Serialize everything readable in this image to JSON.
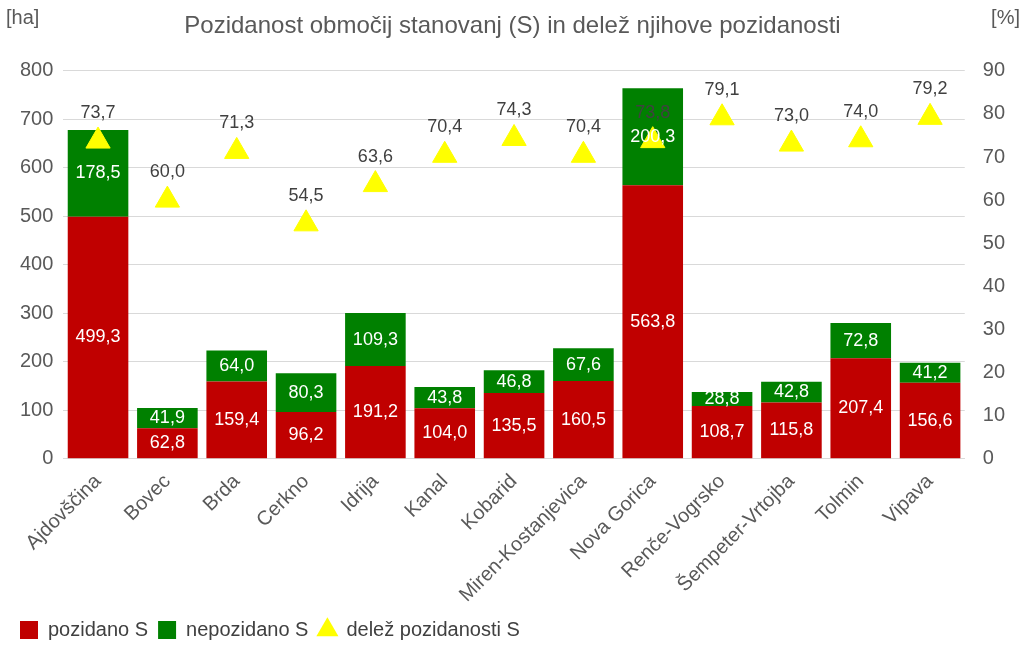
{
  "chart_data": {
    "type": "bar",
    "title": "Pozidanost območij stanovanj (S) in delež njihove pozidanosti",
    "ylabel": "[ha]",
    "y2label": "[%]",
    "categories": [
      "Ajdovščina",
      "Bovec",
      "Brda",
      "Cerkno",
      "Idrija",
      "Kanal",
      "Kobarid",
      "Miren-Kostanjevica",
      "Nova Gorica",
      "Renče-Vogrsko",
      "Šempeter-Vrtojba",
      "Tolmin",
      "Vipava"
    ],
    "stacked": true,
    "series": [
      {
        "name": "pozidano S",
        "color": "#c00000",
        "values": [
          499.3,
          62.8,
          159.4,
          96.2,
          191.2,
          104.0,
          135.5,
          160.5,
          563.8,
          108.7,
          115.8,
          207.4,
          156.6
        ],
        "value_labels": [
          "499,3",
          "62,8",
          "159,4",
          "96,2",
          "191,2",
          "104,0",
          "135,5",
          "160,5",
          "563,8",
          "108,7",
          "115,8",
          "207,4",
          "156,6"
        ]
      },
      {
        "name": "nepozidano S",
        "color": "#008000",
        "values": [
          178.5,
          41.9,
          64.0,
          80.3,
          109.3,
          43.8,
          46.8,
          67.6,
          200.3,
          28.8,
          42.8,
          72.8,
          41.2
        ],
        "value_labels": [
          "178,5",
          "41,9",
          "64,0",
          "80,3",
          "109,3",
          "43,8",
          "46,8",
          "67,6",
          "200,3",
          "28,8",
          "42,8",
          "72,8",
          "41,2"
        ]
      },
      {
        "name": "delež pozidanosti S",
        "type": "scatter",
        "axis": "y2",
        "marker": "triangle",
        "color": "#ffff00",
        "x": [
          "Ajdovščina",
          "Bovec",
          "Brda",
          "Cerkno",
          "Idrija",
          "Kanal",
          "Kobarid",
          "Miren-Kostanjevica",
          "Nova Gorica",
          "Renče-Vogrsko",
          "Šempeter-Vrtojba",
          "Tolmin",
          "Vipava"
        ],
        "values": [
          73.7,
          60.0,
          71.3,
          54.5,
          63.6,
          70.4,
          74.3,
          70.4,
          73.8,
          79.1,
          73.0,
          74.0,
          79.2
        ],
        "value_labels": [
          "73,7",
          "60,0",
          "71,3",
          "54,5",
          "63,6",
          "70,4",
          "74,3",
          "70,4",
          "73,8",
          "79,1",
          "73,0",
          "74,0",
          "79,2"
        ]
      }
    ],
    "ylim": [
      0,
      800
    ],
    "yticks": [
      0,
      100,
      200,
      300,
      400,
      500,
      600,
      700,
      800
    ],
    "y2lim": [
      0,
      90
    ],
    "y2ticks": [
      0,
      10,
      20,
      30,
      40,
      50,
      60,
      70,
      80,
      90
    ],
    "grid": "y",
    "legend": "bottom left"
  }
}
